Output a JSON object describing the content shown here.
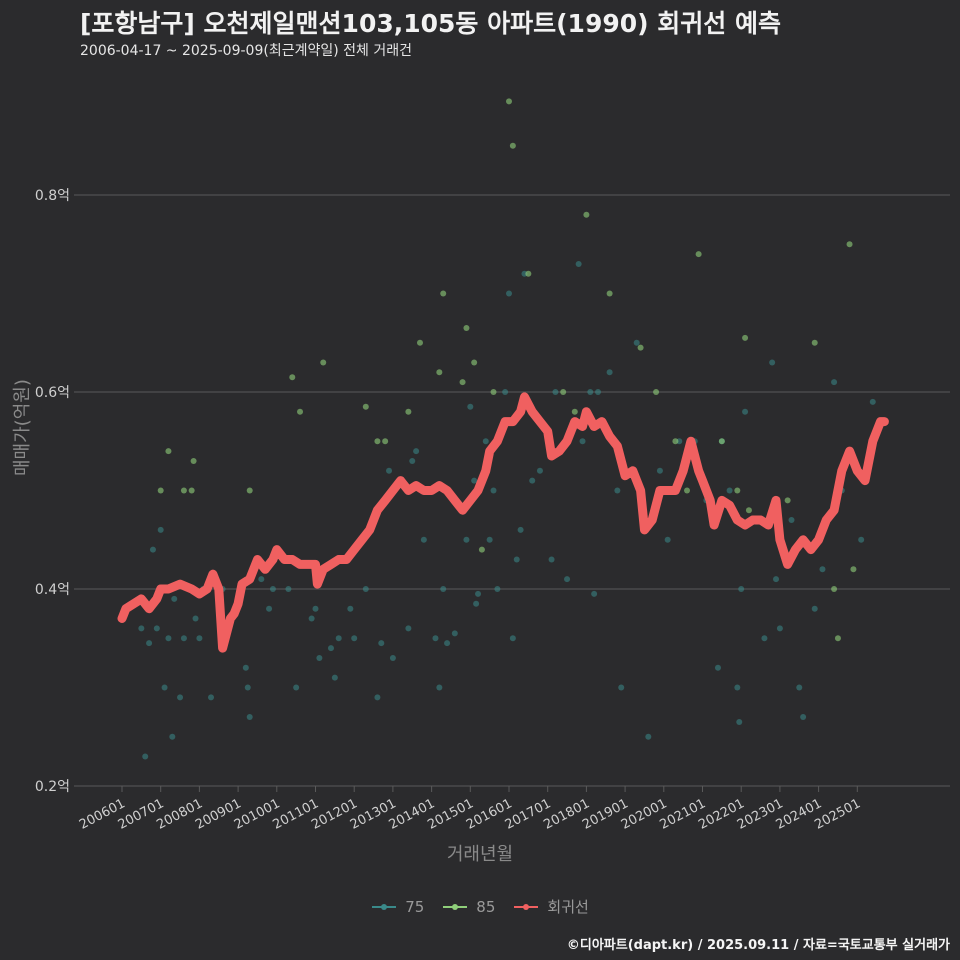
{
  "header": {
    "title": "[포항남구] 오천제일맨션103,105동 아파트(1990) 회귀선 예측",
    "subtitle": "2006-04-17 ~ 2025-09-09(최근계약일) 전체 거래건"
  },
  "footer": {
    "credit": "©디아파트(dapt.kr) / 2025.09.11 / 자료=국토교통부 실거래가"
  },
  "colors": {
    "s75": "#3a8a8a",
    "s85": "#8fcf7a",
    "regression": "#f06060",
    "grid": "#5a5a5a"
  },
  "chart_data": {
    "type": "scatter",
    "title": "[포항남구] 오천제일맨션103,105동 아파트(1990) 회귀선 예측",
    "xlabel": "거래년월",
    "ylabel": "매매가(억원)",
    "xlim": [
      2005.9,
      2026.2
    ],
    "ylim": [
      0.2,
      0.9
    ],
    "y_ticks": [
      0.2,
      0.4,
      0.6,
      0.8
    ],
    "y_tick_labels": [
      "0.2억",
      "0.4억",
      "0.6억",
      "0.8억"
    ],
    "x_ticks": [
      2006,
      2007,
      2008,
      2009,
      2010,
      2011,
      2012,
      2013,
      2014,
      2015,
      2016,
      2017,
      2018,
      2019,
      2020,
      2021,
      2022,
      2023,
      2024,
      2025
    ],
    "x_tick_labels": [
      "200601",
      "200701",
      "200801",
      "200901",
      "201001",
      "201101",
      "201201",
      "201301",
      "201401",
      "201501",
      "201601",
      "201701",
      "201801",
      "201901",
      "202001",
      "202101",
      "202201",
      "202301",
      "202401",
      "202501"
    ],
    "legend": [
      {
        "key": "s75",
        "label": "75"
      },
      {
        "key": "s85",
        "label": "85"
      },
      {
        "key": "regression",
        "label": "회귀선"
      }
    ],
    "series": [
      {
        "name": "75",
        "points": [
          [
            2006.5,
            0.36
          ],
          [
            2006.6,
            0.23
          ],
          [
            2006.7,
            0.345
          ],
          [
            2006.8,
            0.44
          ],
          [
            2006.9,
            0.36
          ],
          [
            2007.0,
            0.46
          ],
          [
            2007.1,
            0.3
          ],
          [
            2007.2,
            0.35
          ],
          [
            2007.3,
            0.25
          ],
          [
            2007.35,
            0.39
          ],
          [
            2007.5,
            0.29
          ],
          [
            2007.6,
            0.35
          ],
          [
            2007.9,
            0.37
          ],
          [
            2008.0,
            0.35
          ],
          [
            2008.1,
            0.4
          ],
          [
            2008.3,
            0.29
          ],
          [
            2008.6,
            0.4
          ],
          [
            2009.2,
            0.32
          ],
          [
            2009.25,
            0.3
          ],
          [
            2009.3,
            0.27
          ],
          [
            2009.4,
            0.42
          ],
          [
            2009.6,
            0.41
          ],
          [
            2009.8,
            0.38
          ],
          [
            2009.9,
            0.4
          ],
          [
            2010.3,
            0.4
          ],
          [
            2010.5,
            0.3
          ],
          [
            2010.9,
            0.37
          ],
          [
            2011.0,
            0.38
          ],
          [
            2011.1,
            0.33
          ],
          [
            2011.4,
            0.34
          ],
          [
            2011.5,
            0.31
          ],
          [
            2011.6,
            0.35
          ],
          [
            2011.9,
            0.38
          ],
          [
            2012.0,
            0.35
          ],
          [
            2012.3,
            0.4
          ],
          [
            2012.6,
            0.29
          ],
          [
            2012.7,
            0.345
          ],
          [
            2012.9,
            0.52
          ],
          [
            2013.0,
            0.33
          ],
          [
            2013.4,
            0.36
          ],
          [
            2013.5,
            0.53
          ],
          [
            2013.6,
            0.54
          ],
          [
            2013.8,
            0.45
          ],
          [
            2014.0,
            0.5
          ],
          [
            2014.1,
            0.35
          ],
          [
            2014.2,
            0.3
          ],
          [
            2014.3,
            0.4
          ],
          [
            2014.4,
            0.345
          ],
          [
            2014.6,
            0.355
          ],
          [
            2014.9,
            0.45
          ],
          [
            2015.0,
            0.585
          ],
          [
            2015.1,
            0.51
          ],
          [
            2015.15,
            0.385
          ],
          [
            2015.2,
            0.395
          ],
          [
            2015.4,
            0.55
          ],
          [
            2015.5,
            0.45
          ],
          [
            2015.6,
            0.5
          ],
          [
            2015.7,
            0.4
          ],
          [
            2015.9,
            0.6
          ],
          [
            2016.0,
            0.7
          ],
          [
            2016.1,
            0.35
          ],
          [
            2016.2,
            0.43
          ],
          [
            2016.3,
            0.46
          ],
          [
            2016.4,
            0.72
          ],
          [
            2016.6,
            0.51
          ],
          [
            2016.8,
            0.52
          ],
          [
            2017.1,
            0.43
          ],
          [
            2017.2,
            0.6
          ],
          [
            2017.5,
            0.41
          ],
          [
            2017.8,
            0.73
          ],
          [
            2017.9,
            0.55
          ],
          [
            2018.0,
            0.57
          ],
          [
            2018.1,
            0.6
          ],
          [
            2018.2,
            0.395
          ],
          [
            2018.3,
            0.6
          ],
          [
            2018.6,
            0.62
          ],
          [
            2018.8,
            0.5
          ],
          [
            2018.9,
            0.3
          ],
          [
            2019.3,
            0.65
          ],
          [
            2019.6,
            0.25
          ],
          [
            2019.9,
            0.52
          ],
          [
            2020.1,
            0.45
          ],
          [
            2020.4,
            0.55
          ],
          [
            2020.8,
            0.55
          ],
          [
            2021.1,
            0.49
          ],
          [
            2021.4,
            0.32
          ],
          [
            2021.5,
            0.55
          ],
          [
            2021.7,
            0.5
          ],
          [
            2021.9,
            0.3
          ],
          [
            2021.95,
            0.265
          ],
          [
            2022.0,
            0.4
          ],
          [
            2022.1,
            0.58
          ],
          [
            2022.3,
            0.47
          ],
          [
            2022.6,
            0.35
          ],
          [
            2022.8,
            0.63
          ],
          [
            2022.9,
            0.41
          ],
          [
            2023.0,
            0.36
          ],
          [
            2023.3,
            0.47
          ],
          [
            2023.5,
            0.3
          ],
          [
            2023.6,
            0.27
          ],
          [
            2023.9,
            0.38
          ],
          [
            2024.1,
            0.42
          ],
          [
            2024.4,
            0.61
          ],
          [
            2024.6,
            0.5
          ],
          [
            2025.1,
            0.45
          ],
          [
            2025.4,
            0.59
          ]
        ]
      },
      {
        "name": "85",
        "points": [
          [
            2007.0,
            0.5
          ],
          [
            2007.2,
            0.54
          ],
          [
            2007.6,
            0.5
          ],
          [
            2007.8,
            0.5
          ],
          [
            2007.85,
            0.53
          ],
          [
            2009.3,
            0.5
          ],
          [
            2010.4,
            0.615
          ],
          [
            2010.6,
            0.58
          ],
          [
            2011.2,
            0.63
          ],
          [
            2012.3,
            0.585
          ],
          [
            2012.6,
            0.55
          ],
          [
            2012.8,
            0.55
          ],
          [
            2013.4,
            0.58
          ],
          [
            2013.7,
            0.65
          ],
          [
            2014.2,
            0.62
          ],
          [
            2014.3,
            0.7
          ],
          [
            2014.8,
            0.61
          ],
          [
            2014.9,
            0.665
          ],
          [
            2015.1,
            0.63
          ],
          [
            2015.3,
            0.44
          ],
          [
            2015.6,
            0.6
          ],
          [
            2016.0,
            0.895
          ],
          [
            2016.1,
            0.85
          ],
          [
            2016.5,
            0.72
          ],
          [
            2017.4,
            0.6
          ],
          [
            2017.7,
            0.58
          ],
          [
            2018.0,
            0.78
          ],
          [
            2018.6,
            0.7
          ],
          [
            2019.4,
            0.645
          ],
          [
            2019.8,
            0.6
          ],
          [
            2020.3,
            0.55
          ],
          [
            2020.6,
            0.5
          ],
          [
            2020.9,
            0.74
          ],
          [
            2021.5,
            0.55
          ],
          [
            2021.9,
            0.5
          ],
          [
            2022.1,
            0.655
          ],
          [
            2022.2,
            0.48
          ],
          [
            2023.2,
            0.49
          ],
          [
            2023.9,
            0.65
          ],
          [
            2024.4,
            0.4
          ],
          [
            2024.5,
            0.35
          ],
          [
            2024.8,
            0.75
          ],
          [
            2024.9,
            0.42
          ]
        ]
      },
      {
        "name": "회귀선",
        "points": [
          [
            2006.0,
            0.37
          ],
          [
            2006.1,
            0.38
          ],
          [
            2006.3,
            0.385
          ],
          [
            2006.5,
            0.39
          ],
          [
            2006.7,
            0.38
          ],
          [
            2006.9,
            0.39
          ],
          [
            2007.0,
            0.4
          ],
          [
            2007.2,
            0.4
          ],
          [
            2007.5,
            0.405
          ],
          [
            2007.8,
            0.4
          ],
          [
            2008.0,
            0.395
          ],
          [
            2008.2,
            0.4
          ],
          [
            2008.35,
            0.415
          ],
          [
            2008.5,
            0.4
          ],
          [
            2008.6,
            0.34
          ],
          [
            2008.8,
            0.37
          ],
          [
            2008.9,
            0.375
          ],
          [
            2009.0,
            0.385
          ],
          [
            2009.1,
            0.405
          ],
          [
            2009.3,
            0.41
          ],
          [
            2009.5,
            0.43
          ],
          [
            2009.7,
            0.42
          ],
          [
            2009.9,
            0.43
          ],
          [
            2010.0,
            0.44
          ],
          [
            2010.2,
            0.43
          ],
          [
            2010.4,
            0.43
          ],
          [
            2010.6,
            0.425
          ],
          [
            2010.8,
            0.425
          ],
          [
            2011.0,
            0.425
          ],
          [
            2011.05,
            0.405
          ],
          [
            2011.2,
            0.42
          ],
          [
            2011.4,
            0.425
          ],
          [
            2011.6,
            0.43
          ],
          [
            2011.8,
            0.43
          ],
          [
            2012.0,
            0.44
          ],
          [
            2012.2,
            0.45
          ],
          [
            2012.4,
            0.46
          ],
          [
            2012.6,
            0.48
          ],
          [
            2012.8,
            0.49
          ],
          [
            2013.0,
            0.5
          ],
          [
            2013.2,
            0.51
          ],
          [
            2013.4,
            0.5
          ],
          [
            2013.6,
            0.505
          ],
          [
            2013.8,
            0.5
          ],
          [
            2014.0,
            0.5
          ],
          [
            2014.2,
            0.505
          ],
          [
            2014.4,
            0.5
          ],
          [
            2014.6,
            0.49
          ],
          [
            2014.8,
            0.48
          ],
          [
            2015.0,
            0.49
          ],
          [
            2015.2,
            0.5
          ],
          [
            2015.4,
            0.52
          ],
          [
            2015.5,
            0.54
          ],
          [
            2015.7,
            0.55
          ],
          [
            2015.9,
            0.57
          ],
          [
            2016.1,
            0.57
          ],
          [
            2016.3,
            0.58
          ],
          [
            2016.4,
            0.595
          ],
          [
            2016.6,
            0.58
          ],
          [
            2016.8,
            0.57
          ],
          [
            2017.0,
            0.56
          ],
          [
            2017.1,
            0.535
          ],
          [
            2017.3,
            0.54
          ],
          [
            2017.5,
            0.55
          ],
          [
            2017.7,
            0.57
          ],
          [
            2017.9,
            0.565
          ],
          [
            2018.0,
            0.58
          ],
          [
            2018.2,
            0.565
          ],
          [
            2018.4,
            0.57
          ],
          [
            2018.6,
            0.555
          ],
          [
            2018.8,
            0.545
          ],
          [
            2019.0,
            0.515
          ],
          [
            2019.2,
            0.52
          ],
          [
            2019.4,
            0.5
          ],
          [
            2019.5,
            0.46
          ],
          [
            2019.7,
            0.47
          ],
          [
            2019.9,
            0.5
          ],
          [
            2020.1,
            0.5
          ],
          [
            2020.3,
            0.5
          ],
          [
            2020.5,
            0.52
          ],
          [
            2020.7,
            0.55
          ],
          [
            2020.9,
            0.52
          ],
          [
            2021.0,
            0.51
          ],
          [
            2021.2,
            0.49
          ],
          [
            2021.3,
            0.465
          ],
          [
            2021.5,
            0.49
          ],
          [
            2021.7,
            0.485
          ],
          [
            2021.9,
            0.47
          ],
          [
            2022.1,
            0.465
          ],
          [
            2022.3,
            0.47
          ],
          [
            2022.5,
            0.47
          ],
          [
            2022.7,
            0.465
          ],
          [
            2022.9,
            0.49
          ],
          [
            2023.0,
            0.45
          ],
          [
            2023.2,
            0.425
          ],
          [
            2023.4,
            0.44
          ],
          [
            2023.6,
            0.45
          ],
          [
            2023.8,
            0.44
          ],
          [
            2024.0,
            0.45
          ],
          [
            2024.2,
            0.47
          ],
          [
            2024.4,
            0.48
          ],
          [
            2024.6,
            0.52
          ],
          [
            2024.8,
            0.54
          ],
          [
            2025.0,
            0.52
          ],
          [
            2025.2,
            0.51
          ],
          [
            2025.4,
            0.55
          ],
          [
            2025.6,
            0.57
          ],
          [
            2025.7,
            0.57
          ]
        ]
      }
    ]
  }
}
